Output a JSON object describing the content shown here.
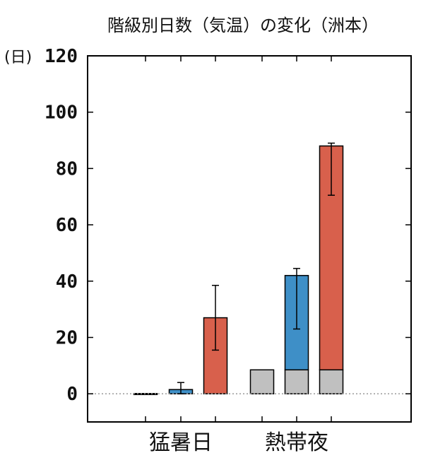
{
  "chart_data": {
    "type": "bar",
    "title": "階級別日数（気温）の変化（洲本）",
    "ylabel": "(日)",
    "ylim": [
      -10,
      120
    ],
    "yticks": [
      0,
      20,
      40,
      60,
      80,
      100,
      120
    ],
    "categories": [
      "猛暑日",
      "熱帯夜"
    ],
    "grid": false,
    "colors": {
      "gray": "#c0c0c0",
      "blue": "#3e8fc7",
      "red": "#d8604c",
      "axis": "#000000",
      "zero_line": "#999999"
    },
    "bars": [
      {
        "category": "猛暑日",
        "slot": 0,
        "base": 0,
        "value": 0.1,
        "color": "gray",
        "err": null
      },
      {
        "category": "猛暑日",
        "slot": 1,
        "base": 0,
        "value": 1.5,
        "color": "blue",
        "err": [
          0,
          4
        ]
      },
      {
        "category": "猛暑日",
        "slot": 2,
        "base": 0,
        "value": 27,
        "color": "red",
        "err": [
          15.5,
          38.5
        ]
      },
      {
        "category": "熱帯夜",
        "slot": 0,
        "base": 0,
        "value": 8.5,
        "color": "gray",
        "err": null
      },
      {
        "category": "熱帯夜",
        "slot": 1,
        "base": 8.5,
        "value": 33.5,
        "color": "blue",
        "err": [
          23,
          44.5
        ]
      },
      {
        "category": "熱帯夜",
        "slot": 1,
        "base": 0,
        "value": 8.5,
        "color": "gray",
        "err": null
      },
      {
        "category": "熱帯夜",
        "slot": 2,
        "base": 8.5,
        "value": 79.5,
        "color": "red",
        "err": [
          70.5,
          89
        ]
      },
      {
        "category": "熱帯夜",
        "slot": 2,
        "base": 0,
        "value": 8.5,
        "color": "gray",
        "err": null
      }
    ]
  }
}
